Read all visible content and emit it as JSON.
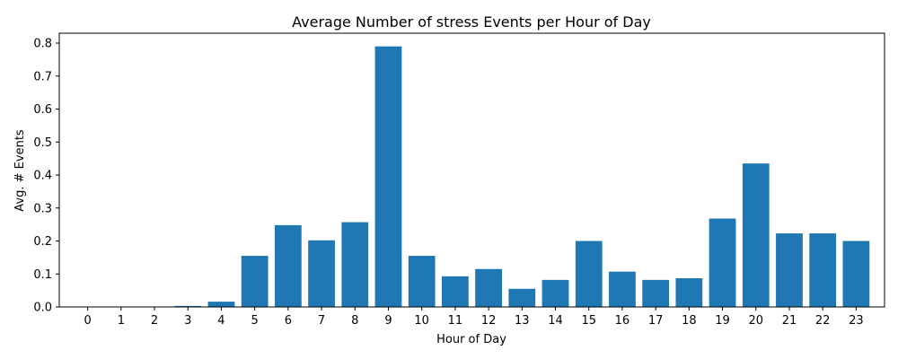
{
  "chart_data": {
    "type": "bar",
    "title": "Average Number of stress Events per Hour of Day",
    "xlabel": "Hour of Day",
    "ylabel": "Avg. # Events",
    "categories": [
      "0",
      "1",
      "2",
      "3",
      "4",
      "5",
      "6",
      "7",
      "8",
      "9",
      "10",
      "11",
      "12",
      "13",
      "14",
      "15",
      "16",
      "17",
      "18",
      "19",
      "20",
      "21",
      "22",
      "23"
    ],
    "values": [
      0,
      0,
      0,
      0.003,
      0.016,
      0.155,
      0.248,
      0.202,
      0.257,
      0.79,
      0.155,
      0.093,
      0.115,
      0.055,
      0.082,
      0.2,
      0.107,
      0.082,
      0.087,
      0.268,
      0.435,
      0.223,
      0.223,
      0.2
    ],
    "ylim": [
      0,
      0.83
    ],
    "yticks": [
      "0.0",
      "0.1",
      "0.2",
      "0.3",
      "0.4",
      "0.5",
      "0.6",
      "0.7",
      "0.8"
    ],
    "grid": false,
    "bar_color": "#1f77b4"
  }
}
